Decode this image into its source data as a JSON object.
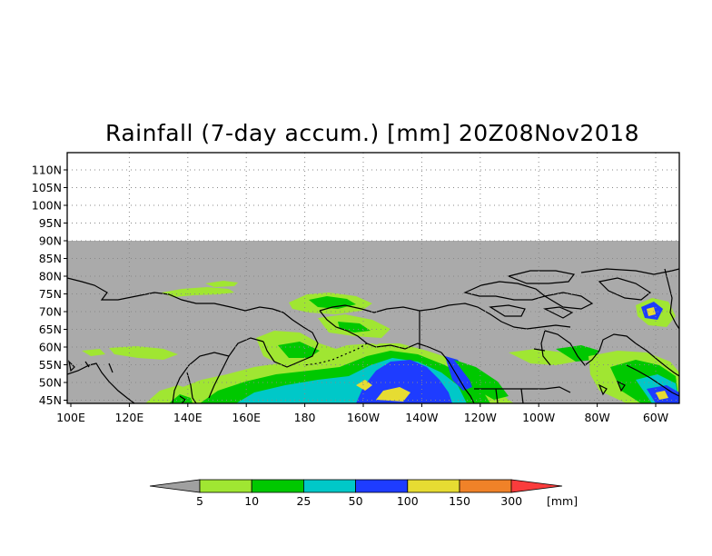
{
  "title": "Rainfall (7-day accum.) [mm] 20Z08Nov2018",
  "map": {
    "lat_ticks": [
      "110N",
      "105N",
      "100N",
      "95N",
      "90N",
      "85N",
      "80N",
      "75N",
      "70N",
      "65N",
      "60N",
      "55N",
      "50N",
      "45N"
    ],
    "lon_ticks": [
      "100E",
      "120E",
      "140E",
      "160E",
      "180",
      "160W",
      "140W",
      "120W",
      "100W",
      "80W",
      "60W"
    ],
    "colors": {
      "no_data": "#aaaaaa",
      "coast": "#000000",
      "grid": "#999999"
    }
  },
  "colorbar": {
    "levels": [
      "5",
      "10",
      "25",
      "50",
      "100",
      "150",
      "300"
    ],
    "unit": "[mm]",
    "colors": [
      "#a0a0a0",
      "#a0e632",
      "#00c800",
      "#00c8c8",
      "#1e3cff",
      "#e6dc32",
      "#f08228",
      "#fa3c3c"
    ]
  }
}
